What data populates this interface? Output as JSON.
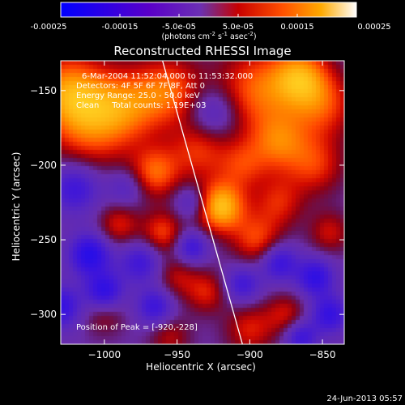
{
  "chart_data": {
    "type": "heatmap",
    "title": "Reconstructed RHESSI Image",
    "xlabel": "Heliocentric X (arcsec)",
    "ylabel": "Heliocentric Y (arcsec)",
    "xlim": [
      -1030,
      -835
    ],
    "ylim": [
      -320,
      -130
    ],
    "xticks": [
      -1000,
      -950,
      -900,
      -850
    ],
    "yticks": [
      -150,
      -200,
      -250,
      -300
    ],
    "colorbar": {
      "range": [
        -0.00025,
        0.00025
      ],
      "ticks": [
        "-0.00025",
        "-0.00015",
        "-5.0e-05",
        "5.0e-05",
        "0.00015",
        "0.00025"
      ],
      "unit_label_parts": {
        "pre": "(photons cm",
        "sup1": "-2",
        "mid1": " s",
        "sup2": "-1",
        "mid2": " asec",
        "sup3": "-2",
        "post": ")"
      }
    },
    "info_lines": [
      "6-Mar-2004 11:52:04.000 to 11:53:32.000",
      "Detectors: 4F 5F 6F 7F 8F, Att 0",
      "Energy Range: 25.0 - 50.0 keV",
      "Clean     Total counts: 1.19E+03"
    ],
    "peak_label": "Position of Peak = [-920,-228]",
    "peak": [
      -920,
      -228
    ],
    "limb_line": [
      [
        -960,
        -130
      ],
      [
        -905,
        -320
      ]
    ],
    "footer": "24-Jun-2013 05:57",
    "blobs": [
      {
        "x": -920,
        "y": -228,
        "v": 1.0,
        "r": 12
      },
      {
        "x": -1025,
        "y": -150,
        "v": 0.75,
        "r": 18
      },
      {
        "x": -1010,
        "y": -175,
        "v": 0.55,
        "r": 20
      },
      {
        "x": -985,
        "y": -160,
        "v": 0.6,
        "r": 18
      },
      {
        "x": -955,
        "y": -150,
        "v": 0.6,
        "r": 16
      },
      {
        "x": -965,
        "y": -205,
        "v": 0.65,
        "r": 12
      },
      {
        "x": -935,
        "y": -190,
        "v": 0.5,
        "r": 14
      },
      {
        "x": -895,
        "y": -150,
        "v": 0.65,
        "r": 20
      },
      {
        "x": -865,
        "y": -140,
        "v": 0.7,
        "r": 14
      },
      {
        "x": -850,
        "y": -160,
        "v": 0.55,
        "r": 16
      },
      {
        "x": -880,
        "y": -185,
        "v": 0.6,
        "r": 14
      },
      {
        "x": -855,
        "y": -200,
        "v": 0.5,
        "r": 14
      },
      {
        "x": -905,
        "y": -200,
        "v": 0.45,
        "r": 12
      },
      {
        "x": -960,
        "y": -245,
        "v": 0.55,
        "r": 10
      },
      {
        "x": -990,
        "y": -240,
        "v": 0.45,
        "r": 10
      },
      {
        "x": -895,
        "y": -250,
        "v": 0.55,
        "r": 12
      },
      {
        "x": -880,
        "y": -225,
        "v": 0.45,
        "r": 12
      },
      {
        "x": -845,
        "y": -245,
        "v": 0.4,
        "r": 10
      },
      {
        "x": -950,
        "y": -275,
        "v": 0.35,
        "r": 10
      },
      {
        "x": -930,
        "y": -285,
        "v": 0.45,
        "r": 10
      },
      {
        "x": -900,
        "y": -310,
        "v": 0.45,
        "r": 12
      },
      {
        "x": -875,
        "y": -300,
        "v": 0.4,
        "r": 10
      },
      {
        "x": -1000,
        "y": -300,
        "v": 0.3,
        "r": 10
      },
      {
        "x": -955,
        "y": -315,
        "v": 0.35,
        "r": 10
      },
      {
        "x": -1020,
        "y": -215,
        "v": -0.55,
        "r": 12
      },
      {
        "x": -1010,
        "y": -260,
        "v": -0.75,
        "r": 10
      },
      {
        "x": -1000,
        "y": -285,
        "v": -0.7,
        "r": 9
      },
      {
        "x": -975,
        "y": -265,
        "v": -0.5,
        "r": 10
      },
      {
        "x": -940,
        "y": -255,
        "v": -0.55,
        "r": 8
      },
      {
        "x": -965,
        "y": -295,
        "v": -0.55,
        "r": 9
      },
      {
        "x": -905,
        "y": -280,
        "v": -0.5,
        "r": 9
      },
      {
        "x": -880,
        "y": -265,
        "v": -0.6,
        "r": 9
      },
      {
        "x": -855,
        "y": -275,
        "v": -0.65,
        "r": 9
      },
      {
        "x": -845,
        "y": -300,
        "v": -0.6,
        "r": 9
      },
      {
        "x": -865,
        "y": -315,
        "v": -0.55,
        "r": 8
      },
      {
        "x": -925,
        "y": -165,
        "v": -0.45,
        "r": 12
      },
      {
        "x": -940,
        "y": -225,
        "v": -0.4,
        "r": 8
      },
      {
        "x": -1030,
        "y": -295,
        "v": -0.6,
        "r": 10
      },
      {
        "x": -985,
        "y": -215,
        "v": -0.35,
        "r": 9
      }
    ]
  }
}
